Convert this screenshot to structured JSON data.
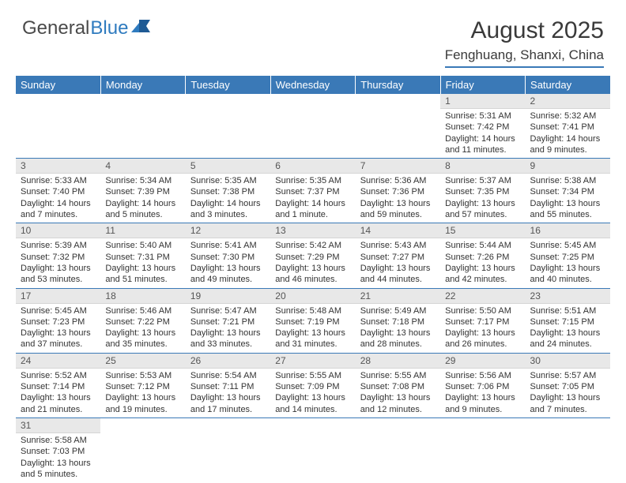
{
  "logo": {
    "part1": "General",
    "part2": "Blue"
  },
  "title": "August 2025",
  "location": "Fenghuang, Shanxi, China",
  "colors": {
    "header_bg": "#3a79b7",
    "header_text": "#ffffff",
    "daynum_bg": "#e8e8e8",
    "border": "#3a79b7",
    "logo_gray": "#4a4a4a",
    "logo_blue": "#2f7bbf"
  },
  "typography": {
    "title_fontsize": 30,
    "location_fontsize": 17,
    "dayhead_fontsize": 13,
    "cell_fontsize": 11
  },
  "day_headers": [
    "Sunday",
    "Monday",
    "Tuesday",
    "Wednesday",
    "Thursday",
    "Friday",
    "Saturday"
  ],
  "weeks": [
    [
      null,
      null,
      null,
      null,
      null,
      {
        "n": "1",
        "sr": "Sunrise: 5:31 AM",
        "ss": "Sunset: 7:42 PM",
        "dl": "Daylight: 14 hours and 11 minutes."
      },
      {
        "n": "2",
        "sr": "Sunrise: 5:32 AM",
        "ss": "Sunset: 7:41 PM",
        "dl": "Daylight: 14 hours and 9 minutes."
      }
    ],
    [
      {
        "n": "3",
        "sr": "Sunrise: 5:33 AM",
        "ss": "Sunset: 7:40 PM",
        "dl": "Daylight: 14 hours and 7 minutes."
      },
      {
        "n": "4",
        "sr": "Sunrise: 5:34 AM",
        "ss": "Sunset: 7:39 PM",
        "dl": "Daylight: 14 hours and 5 minutes."
      },
      {
        "n": "5",
        "sr": "Sunrise: 5:35 AM",
        "ss": "Sunset: 7:38 PM",
        "dl": "Daylight: 14 hours and 3 minutes."
      },
      {
        "n": "6",
        "sr": "Sunrise: 5:35 AM",
        "ss": "Sunset: 7:37 PM",
        "dl": "Daylight: 14 hours and 1 minute."
      },
      {
        "n": "7",
        "sr": "Sunrise: 5:36 AM",
        "ss": "Sunset: 7:36 PM",
        "dl": "Daylight: 13 hours and 59 minutes."
      },
      {
        "n": "8",
        "sr": "Sunrise: 5:37 AM",
        "ss": "Sunset: 7:35 PM",
        "dl": "Daylight: 13 hours and 57 minutes."
      },
      {
        "n": "9",
        "sr": "Sunrise: 5:38 AM",
        "ss": "Sunset: 7:34 PM",
        "dl": "Daylight: 13 hours and 55 minutes."
      }
    ],
    [
      {
        "n": "10",
        "sr": "Sunrise: 5:39 AM",
        "ss": "Sunset: 7:32 PM",
        "dl": "Daylight: 13 hours and 53 minutes."
      },
      {
        "n": "11",
        "sr": "Sunrise: 5:40 AM",
        "ss": "Sunset: 7:31 PM",
        "dl": "Daylight: 13 hours and 51 minutes."
      },
      {
        "n": "12",
        "sr": "Sunrise: 5:41 AM",
        "ss": "Sunset: 7:30 PM",
        "dl": "Daylight: 13 hours and 49 minutes."
      },
      {
        "n": "13",
        "sr": "Sunrise: 5:42 AM",
        "ss": "Sunset: 7:29 PM",
        "dl": "Daylight: 13 hours and 46 minutes."
      },
      {
        "n": "14",
        "sr": "Sunrise: 5:43 AM",
        "ss": "Sunset: 7:27 PM",
        "dl": "Daylight: 13 hours and 44 minutes."
      },
      {
        "n": "15",
        "sr": "Sunrise: 5:44 AM",
        "ss": "Sunset: 7:26 PM",
        "dl": "Daylight: 13 hours and 42 minutes."
      },
      {
        "n": "16",
        "sr": "Sunrise: 5:45 AM",
        "ss": "Sunset: 7:25 PM",
        "dl": "Daylight: 13 hours and 40 minutes."
      }
    ],
    [
      {
        "n": "17",
        "sr": "Sunrise: 5:45 AM",
        "ss": "Sunset: 7:23 PM",
        "dl": "Daylight: 13 hours and 37 minutes."
      },
      {
        "n": "18",
        "sr": "Sunrise: 5:46 AM",
        "ss": "Sunset: 7:22 PM",
        "dl": "Daylight: 13 hours and 35 minutes."
      },
      {
        "n": "19",
        "sr": "Sunrise: 5:47 AM",
        "ss": "Sunset: 7:21 PM",
        "dl": "Daylight: 13 hours and 33 minutes."
      },
      {
        "n": "20",
        "sr": "Sunrise: 5:48 AM",
        "ss": "Sunset: 7:19 PM",
        "dl": "Daylight: 13 hours and 31 minutes."
      },
      {
        "n": "21",
        "sr": "Sunrise: 5:49 AM",
        "ss": "Sunset: 7:18 PM",
        "dl": "Daylight: 13 hours and 28 minutes."
      },
      {
        "n": "22",
        "sr": "Sunrise: 5:50 AM",
        "ss": "Sunset: 7:17 PM",
        "dl": "Daylight: 13 hours and 26 minutes."
      },
      {
        "n": "23",
        "sr": "Sunrise: 5:51 AM",
        "ss": "Sunset: 7:15 PM",
        "dl": "Daylight: 13 hours and 24 minutes."
      }
    ],
    [
      {
        "n": "24",
        "sr": "Sunrise: 5:52 AM",
        "ss": "Sunset: 7:14 PM",
        "dl": "Daylight: 13 hours and 21 minutes."
      },
      {
        "n": "25",
        "sr": "Sunrise: 5:53 AM",
        "ss": "Sunset: 7:12 PM",
        "dl": "Daylight: 13 hours and 19 minutes."
      },
      {
        "n": "26",
        "sr": "Sunrise: 5:54 AM",
        "ss": "Sunset: 7:11 PM",
        "dl": "Daylight: 13 hours and 17 minutes."
      },
      {
        "n": "27",
        "sr": "Sunrise: 5:55 AM",
        "ss": "Sunset: 7:09 PM",
        "dl": "Daylight: 13 hours and 14 minutes."
      },
      {
        "n": "28",
        "sr": "Sunrise: 5:55 AM",
        "ss": "Sunset: 7:08 PM",
        "dl": "Daylight: 13 hours and 12 minutes."
      },
      {
        "n": "29",
        "sr": "Sunrise: 5:56 AM",
        "ss": "Sunset: 7:06 PM",
        "dl": "Daylight: 13 hours and 9 minutes."
      },
      {
        "n": "30",
        "sr": "Sunrise: 5:57 AM",
        "ss": "Sunset: 7:05 PM",
        "dl": "Daylight: 13 hours and 7 minutes."
      }
    ],
    [
      {
        "n": "31",
        "sr": "Sunrise: 5:58 AM",
        "ss": "Sunset: 7:03 PM",
        "dl": "Daylight: 13 hours and 5 minutes."
      },
      null,
      null,
      null,
      null,
      null,
      null
    ]
  ]
}
